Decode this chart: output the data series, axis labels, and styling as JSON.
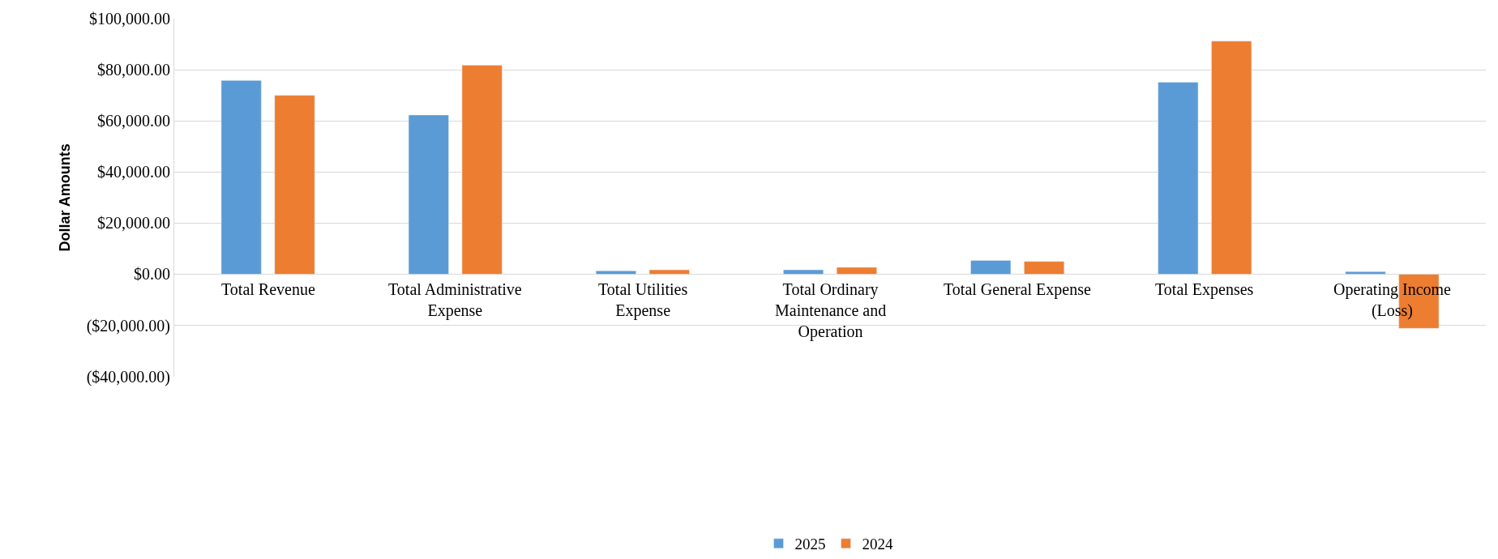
{
  "chart_data": {
    "type": "bar",
    "ylabel": "Dollar Amounts",
    "categories": [
      "Total Revenue",
      "Total Administrative Expense",
      "Total Utilities Expense",
      "Total Ordinary Maintenance and Operation",
      "Total General Expense",
      "Total Expenses",
      "Operating Income (Loss)"
    ],
    "series": [
      {
        "name": "2025",
        "color": "#5b9bd5",
        "values": [
          75800,
          62300,
          1300,
          1700,
          5400,
          75100,
          1000
        ]
      },
      {
        "name": "2024",
        "color": "#ed7d31",
        "values": [
          70000,
          81800,
          1700,
          2700,
          5000,
          91200,
          -21200
        ]
      }
    ],
    "ylim": [
      -40000,
      100000
    ],
    "yticks": [
      {
        "value": -40000,
        "label": "($40,000.00)"
      },
      {
        "value": -20000,
        "label": "($20,000.00)"
      },
      {
        "value": 0,
        "label": "$0.00"
      },
      {
        "value": 20000,
        "label": "$20,000.00"
      },
      {
        "value": 40000,
        "label": "$40,000.00"
      },
      {
        "value": 60000,
        "label": "$60,000.00"
      },
      {
        "value": 80000,
        "label": "$80,000.00"
      },
      {
        "value": 100000,
        "label": "$100,000.00"
      }
    ],
    "grid": "y",
    "legend": "bottom"
  }
}
